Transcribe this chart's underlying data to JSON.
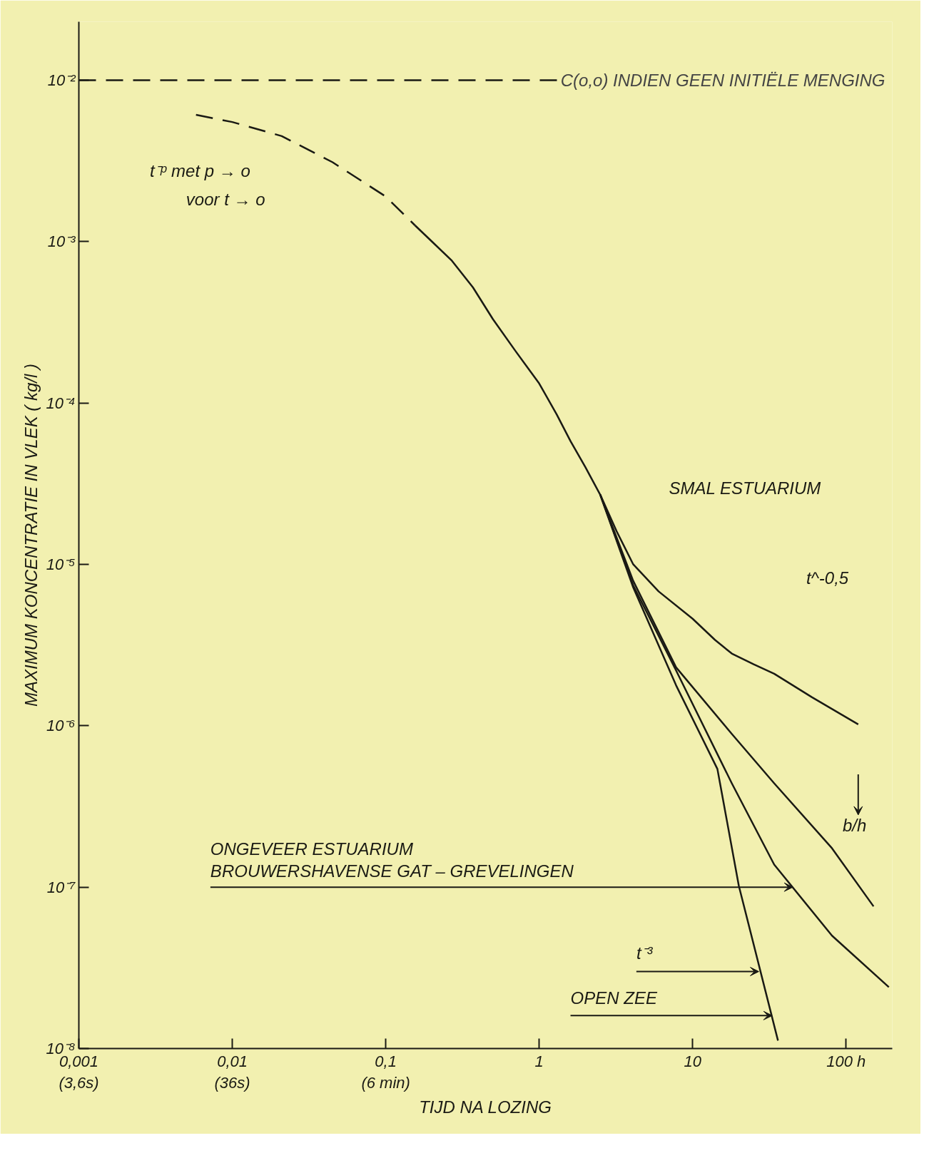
{
  "chart_data": {
    "type": "line",
    "xlabel": "TIJD NA LOZING",
    "ylabel": "MAXIMUM KONCENTRATIE IN VLEK ( kg/l )",
    "log": "xy",
    "grid": false,
    "marker": "none",
    "line_style": "solid",
    "color": "#1a1a14",
    "xlim": [
      0.001,
      200
    ],
    "ylim": [
      1e-08,
      0.023
    ],
    "xticks": [
      {
        "value": 0.001,
        "label": "0,001\n(3,6s)"
      },
      {
        "value": 0.01,
        "label": "0,01\n(36s)"
      },
      {
        "value": 0.1,
        "label": "0,1\n(6 min)"
      },
      {
        "value": 1,
        "label": "1\n "
      },
      {
        "value": 10,
        "label": "10\n "
      },
      {
        "value": 100,
        "label": "100 h\n "
      }
    ],
    "yticks": [
      {
        "value": 1e-08,
        "label": "10⁻⁸"
      },
      {
        "value": 1e-07,
        "label": "10⁻⁷"
      },
      {
        "value": 1e-06,
        "label": "10⁻⁶"
      },
      {
        "value": 1e-05,
        "label": "10⁻⁵"
      },
      {
        "value": 0.0001,
        "label": "10⁻⁴"
      },
      {
        "value": 0.001,
        "label": "10⁻³"
      },
      {
        "value": 0.01,
        "label": "10⁻²"
      }
    ],
    "series": [
      {
        "color": "#1a1a14",
        "line_style": "dashed",
        "x": [
          0.0058,
          0.01,
          0.021,
          0.045,
          0.1,
          0.155
        ],
        "values": [
          0.0061,
          0.0055,
          0.0045,
          0.0031,
          0.0019,
          0.00126
        ]
      },
      {
        "color": "#1a1a14",
        "x": [
          0.155,
          0.2,
          0.27,
          0.37,
          0.5,
          0.7,
          1,
          1.3,
          1.6,
          2,
          2.5,
          3.2,
          4.1,
          6,
          10,
          14,
          18,
          25,
          34,
          60,
          120
        ],
        "values": [
          0.00126,
          0.001,
          0.00076,
          0.00052,
          0.00033,
          0.00021,
          0.000132,
          8.5e-05,
          5.8e-05,
          4e-05,
          2.7e-05,
          1.6e-05,
          1e-05,
          6.8e-06,
          4.6e-06,
          3.4e-06,
          2.8e-06,
          2.4e-06,
          2.1e-06,
          1.5e-06,
          1.02e-06
        ]
      },
      {
        "color": "#1a1a14",
        "x": [
          2.5,
          4.1,
          7.8,
          18,
          34,
          81,
          151
        ],
        "values": [
          2.7e-05,
          7.9e-06,
          2.3e-06,
          8.9e-07,
          4.4e-07,
          1.74e-07,
          7.6e-08
        ]
      },
      {
        "color": "#1a1a14",
        "x": [
          2.5,
          4.1,
          7.8,
          18,
          34,
          81,
          190
        ],
        "values": [
          2.7e-05,
          7.4e-06,
          2.2e-06,
          4.4e-07,
          1.38e-07,
          5e-08,
          2.4e-08
        ]
      },
      {
        "color": "#1a1a14",
        "x": [
          2.5,
          4.1,
          7.8,
          14.5,
          20,
          36
        ],
        "values": [
          2.7e-05,
          7.2e-06,
          1.78e-06,
          5.4e-07,
          1.02e-07,
          1.12e-08
        ]
      }
    ],
    "ref_lines": [
      {
        "axis": "y",
        "value": 0.01,
        "label": "C(o,o) INDIEN GEEN INITIËLE MENGING",
        "line_style": "dashed",
        "color": "#1a1a14"
      }
    ],
    "annotations": [
      "t⁻ᵖ  met p → o",
      "voor t → o",
      "SMAL ESTUARIUM",
      "t^-0,5",
      "b/h",
      "ONGEVEER ESTUARIUM",
      {
        "text": "BROUWERSHAVENSE GAT – GREVELINGEN",
        "x": 45,
        "y": 1e-07
      },
      {
        "text": "t⁻³",
        "x": 27,
        "y": 3e-08
      },
      {
        "text": "OPEN ZEE",
        "x": 33,
        "y": 1.6e-08
      }
    ]
  }
}
